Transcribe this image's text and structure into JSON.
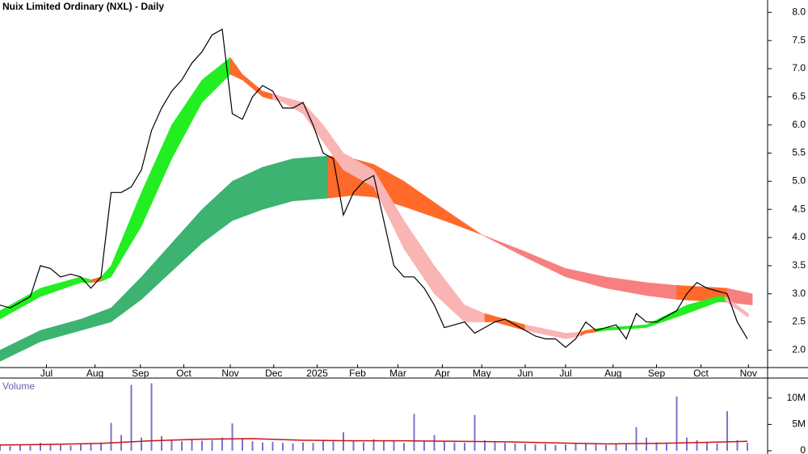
{
  "chart_data": [
    {
      "type": "line",
      "title": "Nuix Limited Ordinary (NXL) - Daily",
      "x": [
        0,
        1,
        2,
        3,
        4,
        5,
        6,
        7,
        8,
        9,
        10,
        11,
        12,
        13,
        14,
        15,
        16,
        17,
        18,
        19,
        20,
        21,
        22,
        23,
        24,
        25,
        26,
        27,
        28,
        29,
        30,
        31,
        32,
        33,
        34,
        35,
        36,
        37,
        38,
        39,
        40,
        41,
        42,
        43,
        44,
        45,
        46,
        47,
        48,
        49,
        50,
        51,
        52,
        53,
        54,
        55,
        56,
        57,
        58,
        59,
        60,
        61,
        62,
        63,
        64,
        65,
        66,
        67,
        68,
        69,
        70,
        71,
        72,
        73,
        74
      ],
      "series": [
        {
          "color": "#000000",
          "values": [
            2.8,
            2.75,
            2.85,
            2.95,
            3.5,
            3.45,
            3.3,
            3.35,
            3.3,
            3.1,
            3.3,
            4.8,
            4.8,
            4.9,
            5.2,
            5.9,
            6.3,
            6.6,
            6.8,
            7.1,
            7.3,
            7.6,
            7.7,
            6.2,
            6.1,
            6.5,
            6.7,
            6.6,
            6.3,
            6.3,
            6.4,
            6.0,
            5.5,
            5.4,
            4.4,
            4.8,
            5.0,
            5.1,
            4.3,
            3.5,
            3.3,
            3.3,
            3.1,
            2.8,
            2.4,
            2.45,
            2.5,
            2.3,
            2.4,
            2.5,
            2.55,
            2.45,
            2.35,
            2.25,
            2.2,
            2.2,
            2.05,
            2.2,
            2.5,
            2.35,
            2.4,
            2.45,
            2.2,
            2.65,
            2.5,
            2.5,
            2.6,
            2.7,
            3.0,
            3.2,
            3.1,
            3.05,
            3.0,
            2.5,
            2.2
          ]
        }
      ],
      "bands": [
        {
          "color": "#3cb371",
          "x": [
            0,
            4,
            8,
            11,
            14,
            17,
            20,
            23,
            26,
            29,
            32.5
          ],
          "upper": [
            2.0,
            2.35,
            2.55,
            2.75,
            3.3,
            3.9,
            4.5,
            5.0,
            5.25,
            5.4,
            5.45
          ],
          "lower": [
            1.8,
            2.15,
            2.35,
            2.5,
            2.9,
            3.4,
            3.9,
            4.3,
            4.5,
            4.65,
            4.7
          ]
        },
        {
          "color": "#ff6a2b",
          "x": [
            32.5,
            35,
            37,
            40,
            44,
            47.7
          ],
          "upper": [
            5.45,
            5.4,
            5.3,
            5.0,
            4.5,
            4.05
          ],
          "lower": [
            4.7,
            4.75,
            4.72,
            4.55,
            4.3,
            4.05
          ]
        },
        {
          "color": "#f87f7f",
          "x": [
            47.7,
            52,
            56,
            60,
            64,
            67
          ],
          "upper": [
            4.05,
            3.75,
            3.45,
            3.3,
            3.2,
            3.15
          ],
          "lower": [
            4.05,
            3.65,
            3.3,
            3.1,
            2.97,
            2.9
          ]
        },
        {
          "color": "#ff6a2b",
          "x": [
            67,
            72
          ],
          "upper": [
            3.15,
            3.1
          ],
          "lower": [
            2.9,
            2.85
          ]
        },
        {
          "color": "#f87f7f",
          "x": [
            72,
            74.5
          ],
          "upper": [
            3.1,
            3.0
          ],
          "lower": [
            2.85,
            2.8
          ]
        },
        {
          "color": "#22ee22",
          "x": [
            0,
            4,
            8,
            9
          ],
          "upper": [
            2.7,
            3.1,
            3.3,
            3.25
          ],
          "lower": [
            2.55,
            2.95,
            3.2,
            3.2
          ]
        },
        {
          "color": "#ff6a2b",
          "x": [
            9,
            10
          ],
          "upper": [
            3.25,
            3.3
          ],
          "lower": [
            3.2,
            3.22
          ]
        },
        {
          "color": "#22ee22",
          "x": [
            10,
            11,
            14,
            17,
            20,
            22.8
          ],
          "upper": [
            3.3,
            3.5,
            4.8,
            6.0,
            6.8,
            7.2
          ],
          "lower": [
            3.22,
            3.3,
            4.2,
            5.4,
            6.4,
            6.9
          ]
        },
        {
          "color": "#ff6a2b",
          "x": [
            22.8,
            24,
            26,
            27
          ],
          "upper": [
            7.2,
            6.9,
            6.6,
            6.55
          ],
          "lower": [
            6.9,
            6.8,
            6.5,
            6.45
          ]
        },
        {
          "color": "#f9b4b4",
          "x": [
            27,
            28,
            30,
            32,
            34,
            37,
            40,
            43,
            46,
            48
          ],
          "upper": [
            6.55,
            6.5,
            6.4,
            6.0,
            5.5,
            5.2,
            4.3,
            3.5,
            2.8,
            2.65
          ],
          "lower": [
            6.45,
            6.4,
            6.2,
            5.7,
            5.2,
            4.9,
            3.8,
            3.0,
            2.5,
            2.5
          ]
        },
        {
          "color": "#ff6a2b",
          "x": [
            48,
            49,
            52
          ],
          "upper": [
            2.65,
            2.6,
            2.45
          ],
          "lower": [
            2.5,
            2.5,
            2.35
          ]
        },
        {
          "color": "#f9b4b4",
          "x": [
            52,
            56,
            57.5
          ],
          "upper": [
            2.45,
            2.3,
            2.32
          ],
          "lower": [
            2.35,
            2.2,
            2.25
          ]
        },
        {
          "color": "#ff6a2b",
          "x": [
            57.5,
            58,
            59
          ],
          "upper": [
            2.32,
            2.35,
            2.38
          ],
          "lower": [
            2.25,
            2.3,
            2.32
          ]
        },
        {
          "color": "#22ee22",
          "x": [
            59,
            60,
            64,
            68,
            71,
            71.8
          ],
          "upper": [
            2.38,
            2.4,
            2.45,
            2.8,
            2.95,
            2.95
          ],
          "lower": [
            2.32,
            2.35,
            2.4,
            2.65,
            2.85,
            2.87
          ]
        },
        {
          "color": "#f9b4b4",
          "x": [
            71.8,
            74.1
          ],
          "upper": [
            2.95,
            2.65
          ],
          "lower": [
            2.87,
            2.58
          ]
        }
      ],
      "xlim": [
        0,
        76
      ],
      "xticks": [
        {
          "value": 4.6,
          "label": "Jul"
        },
        {
          "value": 9.4,
          "label": "Aug"
        },
        {
          "value": 13.9,
          "label": "Sep"
        },
        {
          "value": 18.2,
          "label": "Oct"
        },
        {
          "value": 22.8,
          "label": "Nov"
        },
        {
          "value": 27.1,
          "label": "Dec"
        },
        {
          "value": 31.4,
          "label": "2025"
        },
        {
          "value": 35.4,
          "label": "Feb"
        },
        {
          "value": 39.4,
          "label": "Mar"
        },
        {
          "value": 43.8,
          "label": "Apr"
        },
        {
          "value": 47.7,
          "label": "May"
        },
        {
          "value": 52,
          "label": "Jun"
        },
        {
          "value": 56,
          "label": "Jul"
        },
        {
          "value": 60.7,
          "label": "Aug"
        },
        {
          "value": 65,
          "label": "Sep"
        },
        {
          "value": 69.4,
          "label": "Oct"
        },
        {
          "value": 74.1,
          "label": "Nov"
        }
      ],
      "ylim": [
        1.69,
        8.22
      ],
      "yticks": [
        {
          "value": 2,
          "label": "2.0"
        },
        2.5,
        {
          "value": 3,
          "label": "3.0"
        },
        3.5,
        {
          "value": 4,
          "label": "4.0"
        },
        4.5,
        {
          "value": 5,
          "label": "5.0"
        },
        5.5,
        {
          "value": 6,
          "label": "6.0"
        },
        6.5,
        {
          "value": 7,
          "label": "7.0"
        },
        7.5,
        {
          "value": 8,
          "label": "8.0"
        }
      ]
    },
    {
      "type": "bar",
      "title": "Volume",
      "x": [
        0,
        1,
        2,
        3,
        4,
        5,
        6,
        7,
        8,
        9,
        10,
        11,
        12,
        13,
        14,
        15,
        16,
        17,
        18,
        19,
        20,
        21,
        22,
        23,
        24,
        25,
        26,
        27,
        28,
        29,
        30,
        31,
        32,
        33,
        34,
        35,
        36,
        37,
        38,
        39,
        40,
        41,
        42,
        43,
        44,
        45,
        46,
        47,
        48,
        49,
        50,
        51,
        52,
        53,
        54,
        55,
        56,
        57,
        58,
        59,
        60,
        61,
        62,
        63,
        64,
        65,
        66,
        67,
        68,
        69,
        70,
        71,
        72,
        73,
        74
      ],
      "series": [
        {
          "color": "#7e72c8",
          "values": [
            1200000,
            900000,
            1100000,
            1000000,
            1500000,
            1300000,
            1100000,
            1000000,
            1200000,
            1400000,
            1600000,
            5300000,
            3000000,
            12500000,
            2500000,
            12800000,
            2800000,
            2000000,
            1800000,
            2200000,
            1900000,
            2000000,
            2500000,
            5200000,
            2400000,
            1800000,
            1600000,
            1700000,
            1500000,
            1400000,
            1600000,
            1500000,
            2000000,
            1800000,
            3500000,
            2000000,
            1600000,
            2200000,
            2000000,
            1800000,
            1500000,
            7000000,
            1900000,
            3000000,
            1800000,
            1600000,
            1500000,
            6800000,
            2000000,
            1700000,
            1500000,
            1400000,
            1300000,
            1200000,
            1300000,
            1100000,
            1200000,
            1400000,
            1300000,
            1200000,
            1100000,
            1300000,
            1200000,
            4500000,
            2500000,
            1600000,
            1400000,
            10300000,
            2500000,
            2000000,
            1600000,
            1400000,
            7500000,
            2000000,
            1500000
          ]
        },
        {
          "type": "line",
          "color": "#cc1111",
          "x": [
            0,
            5,
            10,
            15,
            20,
            25,
            30,
            35,
            40,
            45,
            50,
            55,
            60,
            65,
            70,
            74
          ],
          "values": [
            1100000,
            1200000,
            1400000,
            1900000,
            2200000,
            2300000,
            2000000,
            1900000,
            1900000,
            1800000,
            1700000,
            1500000,
            1300000,
            1400000,
            1600000,
            1800000
          ]
        }
      ],
      "xlim": [
        0,
        76
      ],
      "ylim": [
        0,
        13800000
      ],
      "yticks": [
        0,
        {
          "value": 5000000,
          "label": "5M"
        },
        {
          "value": 10000000,
          "label": "10M"
        }
      ]
    }
  ]
}
